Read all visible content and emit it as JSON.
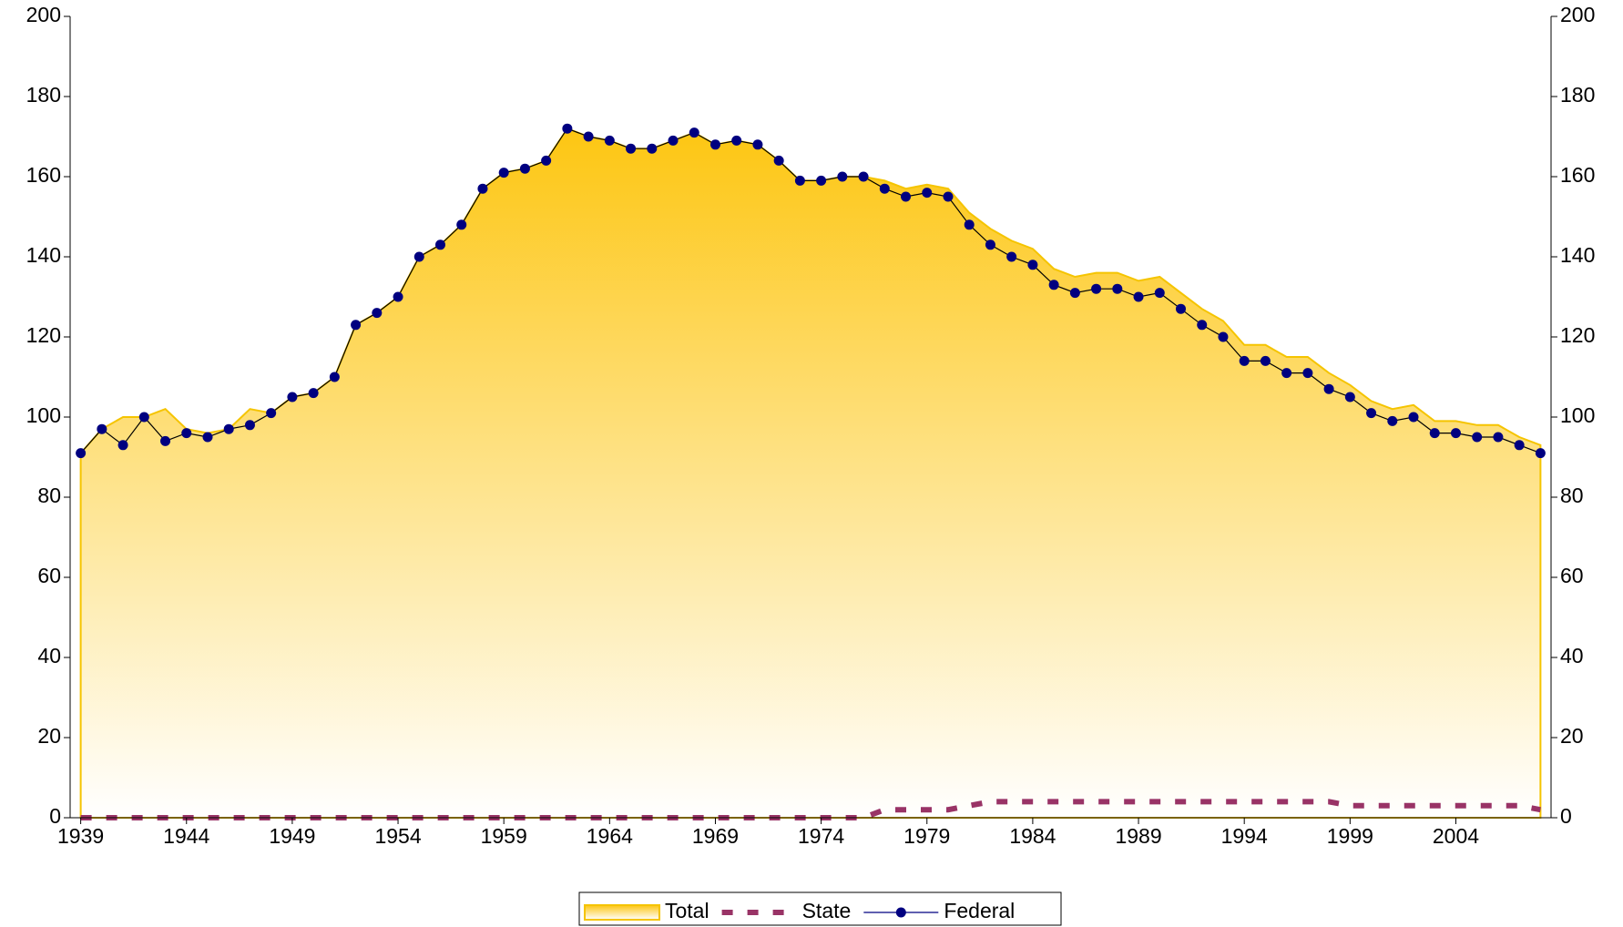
{
  "chart_data": {
    "type": "line",
    "x": [
      1939,
      1940,
      1941,
      1942,
      1943,
      1944,
      1945,
      1946,
      1947,
      1948,
      1949,
      1950,
      1951,
      1952,
      1953,
      1954,
      1955,
      1956,
      1957,
      1958,
      1959,
      1960,
      1961,
      1962,
      1963,
      1964,
      1965,
      1966,
      1967,
      1968,
      1969,
      1970,
      1971,
      1972,
      1973,
      1974,
      1975,
      1976,
      1977,
      1978,
      1979,
      1980,
      1981,
      1982,
      1983,
      1984,
      1985,
      1986,
      1987,
      1988,
      1989,
      1990,
      1991,
      1992,
      1993,
      1994,
      1995,
      1996,
      1997,
      1998,
      1999,
      2000,
      2001,
      2002,
      2003,
      2004,
      2005,
      2006,
      2007,
      2008
    ],
    "xlim": [
      1938.5,
      2008.5
    ],
    "xticks": [
      1939,
      1944,
      1949,
      1954,
      1959,
      1964,
      1969,
      1974,
      1979,
      1984,
      1989,
      1994,
      1999,
      2004
    ],
    "ylim": [
      0,
      200
    ],
    "yticks": [
      0,
      20,
      40,
      60,
      80,
      100,
      120,
      140,
      160,
      180,
      200
    ],
    "y2lim": [
      0,
      200
    ],
    "y2ticks": [
      0,
      20,
      40,
      60,
      80,
      100,
      120,
      140,
      160,
      180,
      200
    ],
    "series": [
      {
        "name": "Total",
        "type": "area",
        "color": "#f5c400",
        "values": [
          91,
          97,
          100,
          100,
          102,
          97,
          96,
          97,
          102,
          101,
          105,
          106,
          110,
          123,
          126,
          130,
          140,
          143,
          148,
          157,
          161,
          162,
          164,
          172,
          170,
          169,
          167,
          167,
          169,
          171,
          168,
          169,
          168,
          164,
          159,
          159,
          160,
          160,
          159,
          157,
          158,
          157,
          151,
          147,
          144,
          142,
          137,
          135,
          136,
          136,
          134,
          135,
          131,
          127,
          124,
          118,
          118,
          115,
          115,
          111,
          108,
          104,
          102,
          103,
          99,
          99,
          98,
          98,
          95,
          93
        ]
      },
      {
        "name": "State",
        "type": "dashed",
        "color": "#993366",
        "values": [
          0,
          0,
          0,
          0,
          0,
          0,
          0,
          0,
          0,
          0,
          0,
          0,
          0,
          0,
          0,
          0,
          0,
          0,
          0,
          0,
          0,
          0,
          0,
          0,
          0,
          0,
          0,
          0,
          0,
          0,
          0,
          0,
          0,
          0,
          0,
          0,
          0,
          0,
          2,
          2,
          2,
          2,
          3,
          4,
          4,
          4,
          4,
          4,
          4,
          4,
          4,
          4,
          4,
          4,
          4,
          4,
          4,
          4,
          4,
          4,
          3,
          3,
          3,
          3,
          3,
          3,
          3,
          3,
          3,
          2
        ]
      },
      {
        "name": "Federal",
        "type": "marker",
        "color": "#000080",
        "values": [
          91,
          97,
          93,
          100,
          94,
          96,
          95,
          97,
          98,
          101,
          105,
          106,
          110,
          123,
          126,
          130,
          140,
          143,
          148,
          157,
          161,
          162,
          164,
          172,
          170,
          169,
          167,
          167,
          169,
          171,
          168,
          169,
          168,
          164,
          159,
          159,
          160,
          160,
          157,
          155,
          156,
          155,
          148,
          143,
          140,
          138,
          133,
          131,
          132,
          132,
          130,
          131,
          127,
          123,
          120,
          114,
          114,
          111,
          111,
          107,
          105,
          101,
          99,
          100,
          96,
          96,
          95,
          95,
          93,
          91
        ]
      }
    ]
  }
}
